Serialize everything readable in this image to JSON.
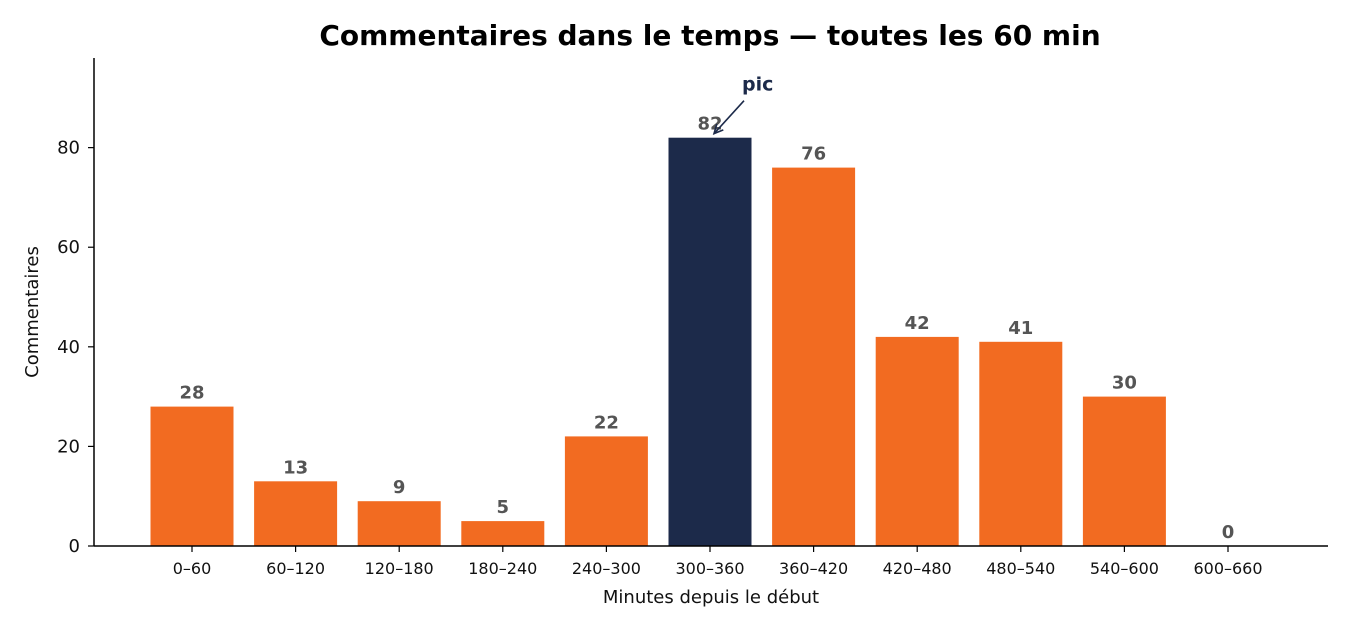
{
  "chart_data": {
    "type": "bar",
    "title": "Commentaires dans le temps — toutes les 60 min",
    "xlabel": "Minutes depuis le début",
    "ylabel": "Commentaires",
    "categories": [
      "0–60",
      "60–120",
      "120–180",
      "180–240",
      "240–300",
      "300–360",
      "360–420",
      "420–480",
      "480–540",
      "540–600",
      "600–660"
    ],
    "values": [
      28,
      13,
      9,
      5,
      22,
      82,
      76,
      42,
      41,
      30,
      0
    ],
    "ylim": [
      0,
      98
    ],
    "yticks": [
      0,
      20,
      40,
      60,
      80
    ],
    "grid": false,
    "colors": {
      "bar": "#F26B21",
      "highlight": "#1C2A4A",
      "data_label": "#555555"
    },
    "highlight_index": 5,
    "annotation": {
      "text": "pic",
      "target_index": 5
    }
  }
}
